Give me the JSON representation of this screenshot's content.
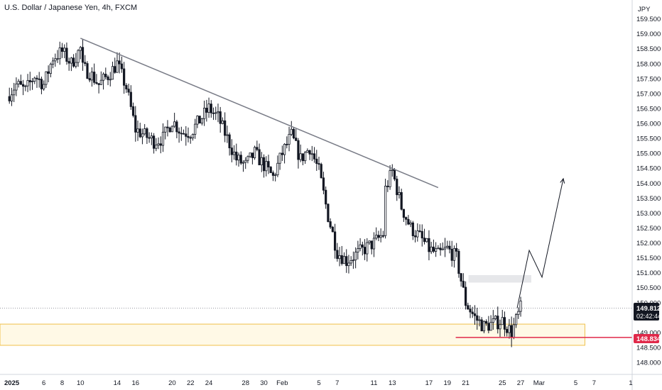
{
  "header": {
    "title": "U.S. Dollar / Japanese Yen, 4h, FXCM"
  },
  "chart_data": {
    "type": "candlestick",
    "title": "U.S. Dollar / Japanese Yen, 4h, FXCM",
    "currency": "JPY",
    "y_range": [
      147.9,
      160.1
    ],
    "y_ticks": [
      "159.500",
      "159.000",
      "158.500",
      "158.000",
      "157.500",
      "157.000",
      "156.500",
      "156.000",
      "155.500",
      "155.000",
      "154.500",
      "154.000",
      "153.500",
      "153.000",
      "152.500",
      "152.000",
      "151.500",
      "151.000",
      "150.500",
      "150.000",
      "149.000",
      "148.500",
      "148.000"
    ],
    "x_range_days": [
      "2025-01-02",
      "2025-03-11"
    ],
    "x_ticks": [
      {
        "label": "2025",
        "date": "2025-01-02",
        "bold": true
      },
      {
        "label": "6",
        "date": "2025-01-06"
      },
      {
        "label": "8",
        "date": "2025-01-08"
      },
      {
        "label": "10",
        "date": "2025-01-10"
      },
      {
        "label": "14",
        "date": "2025-01-14"
      },
      {
        "label": "16",
        "date": "2025-01-16"
      },
      {
        "label": "20",
        "date": "2025-01-20"
      },
      {
        "label": "22",
        "date": "2025-01-22"
      },
      {
        "label": "24",
        "date": "2025-01-24"
      },
      {
        "label": "28",
        "date": "2025-01-28"
      },
      {
        "label": "30",
        "date": "2025-01-30"
      },
      {
        "label": "Feb",
        "date": "2025-02-01"
      },
      {
        "label": "5",
        "date": "2025-02-05"
      },
      {
        "label": "7",
        "date": "2025-02-07"
      },
      {
        "label": "11",
        "date": "2025-02-11"
      },
      {
        "label": "13",
        "date": "2025-02-13"
      },
      {
        "label": "17",
        "date": "2025-02-17"
      },
      {
        "label": "19",
        "date": "2025-02-19"
      },
      {
        "label": "21",
        "date": "2025-02-21"
      },
      {
        "label": "25",
        "date": "2025-02-25"
      },
      {
        "label": "27",
        "date": "2025-02-27"
      },
      {
        "label": "Mar",
        "date": "2025-03-01"
      },
      {
        "label": "5",
        "date": "2025-03-05"
      },
      {
        "label": "7",
        "date": "2025-03-07"
      },
      {
        "label": "1",
        "date": "2025-03-11"
      }
    ],
    "price_path": [
      {
        "date": "2025-01-02",
        "price": 156.9
      },
      {
        "date": "2025-01-03",
        "price": 157.3
      },
      {
        "date": "2025-01-04",
        "price": 157.1
      },
      {
        "date": "2025-01-05",
        "price": 157.6
      },
      {
        "date": "2025-01-06",
        "price": 157.3
      },
      {
        "date": "2025-01-07",
        "price": 158.2
      },
      {
        "date": "2025-01-08",
        "price": 158.4
      },
      {
        "date": "2025-01-09",
        "price": 158.0
      },
      {
        "date": "2025-01-10",
        "price": 158.5
      },
      {
        "date": "2025-01-10",
        "price": 157.9
      },
      {
        "date": "2025-01-11",
        "price": 157.7
      },
      {
        "date": "2025-01-12",
        "price": 157.3
      },
      {
        "date": "2025-01-13",
        "price": 157.6
      },
      {
        "date": "2025-01-14",
        "price": 158.0
      },
      {
        "date": "2025-01-15",
        "price": 157.2
      },
      {
        "date": "2025-01-16",
        "price": 155.8
      },
      {
        "date": "2025-01-17",
        "price": 155.6
      },
      {
        "date": "2025-01-18",
        "price": 155.4
      },
      {
        "date": "2025-01-19",
        "price": 155.5
      },
      {
        "date": "2025-01-20",
        "price": 156.1
      },
      {
        "date": "2025-01-21",
        "price": 155.7
      },
      {
        "date": "2025-01-22",
        "price": 155.7
      },
      {
        "date": "2025-01-23",
        "price": 156.1
      },
      {
        "date": "2025-01-24",
        "price": 156.5
      },
      {
        "date": "2025-01-25",
        "price": 156.2
      },
      {
        "date": "2025-01-26",
        "price": 155.5
      },
      {
        "date": "2025-01-27",
        "price": 154.8
      },
      {
        "date": "2025-01-28",
        "price": 154.6
      },
      {
        "date": "2025-01-29",
        "price": 155.0
      },
      {
        "date": "2025-01-30",
        "price": 154.6
      },
      {
        "date": "2025-01-31",
        "price": 154.2
      },
      {
        "date": "2025-02-01",
        "price": 155.0
      },
      {
        "date": "2025-02-02",
        "price": 155.6
      },
      {
        "date": "2025-02-03",
        "price": 154.8
      },
      {
        "date": "2025-02-04",
        "price": 155.2
      },
      {
        "date": "2025-02-05",
        "price": 154.4
      },
      {
        "date": "2025-02-06",
        "price": 152.9
      },
      {
        "date": "2025-02-07",
        "price": 151.7
      },
      {
        "date": "2025-02-08",
        "price": 151.4
      },
      {
        "date": "2025-02-09",
        "price": 151.6
      },
      {
        "date": "2025-02-10",
        "price": 151.8
      },
      {
        "date": "2025-02-11",
        "price": 152.0
      },
      {
        "date": "2025-02-12",
        "price": 152.3
      },
      {
        "date": "2025-02-12",
        "price": 153.6
      },
      {
        "date": "2025-02-13",
        "price": 154.4
      },
      {
        "date": "2025-02-14",
        "price": 153.2
      },
      {
        "date": "2025-02-15",
        "price": 152.5
      },
      {
        "date": "2025-02-16",
        "price": 152.2
      },
      {
        "date": "2025-02-17",
        "price": 151.8
      },
      {
        "date": "2025-02-18",
        "price": 151.6
      },
      {
        "date": "2025-02-19",
        "price": 151.8
      },
      {
        "date": "2025-02-20",
        "price": 151.5
      },
      {
        "date": "2025-02-21",
        "price": 150.0
      },
      {
        "date": "2025-02-22",
        "price": 149.5
      },
      {
        "date": "2025-02-23",
        "price": 149.2
      },
      {
        "date": "2025-02-24",
        "price": 149.3
      },
      {
        "date": "2025-02-25",
        "price": 149.4
      },
      {
        "date": "2025-02-26",
        "price": 149.0
      },
      {
        "date": "2025-02-27",
        "price": 149.81
      }
    ],
    "trendline": {
      "from": {
        "date": "2025-01-10",
        "price": 158.85
      },
      "to": {
        "date": "2025-02-18",
        "price": 153.85
      }
    },
    "support_zone": {
      "from": "2025-01-02",
      "to": "2025-03-06",
      "top": 149.28,
      "bottom": 148.57
    },
    "resistance_box": {
      "from": "2025-02-21",
      "to": "2025-02-28",
      "top": 150.92,
      "bottom": 150.67
    },
    "projection": [
      {
        "date": "2025-02-27",
        "price": 149.82
      },
      {
        "date": "2025-02-28",
        "price": 151.75
      },
      {
        "date": "2025-03-01",
        "price": 150.85
      },
      {
        "date": "2025-03-02",
        "price": 154.15
      }
    ],
    "current_price": {
      "value": "149.812",
      "countdown": "02:42:44",
      "price": 149.812
    },
    "level_line": {
      "value": "148.834",
      "price": 148.834,
      "from": "2025-02-21"
    },
    "colors": {
      "candle": "#131722",
      "trendline": "#787b86",
      "support_fill": "#fff9e6",
      "support_border": "#f0c14b",
      "resistance_fill": "#e6e7ea",
      "level": "#e0294a",
      "tag_dark": "#131722"
    }
  }
}
